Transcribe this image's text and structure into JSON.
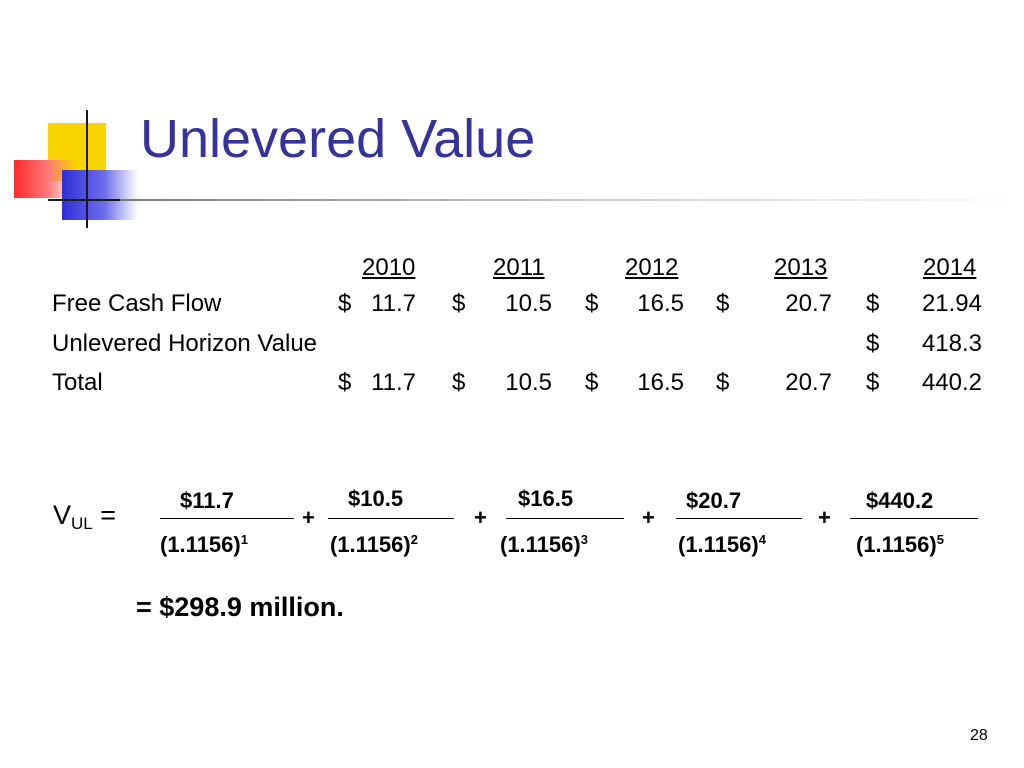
{
  "slide": {
    "title": "Unlevered Value",
    "page_number": "28"
  },
  "table": {
    "years": [
      "2010",
      "2011",
      "2012",
      "2013",
      "2014"
    ],
    "rows": [
      {
        "label": "Free Cash Flow",
        "cells": [
          {
            "cur": "$",
            "val": "11.7"
          },
          {
            "cur": "$",
            "val": "10.5"
          },
          {
            "cur": "$",
            "val": "16.5"
          },
          {
            "cur": "$",
            "val": "20.7"
          },
          {
            "cur": "$",
            "val": "21.94"
          }
        ]
      },
      {
        "label": "Unlevered Horizon Value",
        "cells": [
          {
            "cur": "",
            "val": ""
          },
          {
            "cur": "",
            "val": ""
          },
          {
            "cur": "",
            "val": ""
          },
          {
            "cur": "",
            "val": ""
          },
          {
            "cur": "$",
            "val": "418.3"
          }
        ]
      },
      {
        "label": "Total",
        "cells": [
          {
            "cur": "$",
            "val": "11.7"
          },
          {
            "cur": "$",
            "val": "10.5"
          },
          {
            "cur": "$",
            "val": "16.5"
          },
          {
            "cur": "$",
            "val": "20.7"
          },
          {
            "cur": "$",
            "val": "440.2"
          }
        ]
      }
    ]
  },
  "formula": {
    "v_letter": "V",
    "v_sub": "UL",
    "equals": "=",
    "plus": "+",
    "terms": [
      {
        "num": "$11.7",
        "den_base": "(1.1156)",
        "den_exp": "1"
      },
      {
        "num": "$10.5",
        "den_base": "(1.1156)",
        "den_exp": "2"
      },
      {
        "num": "$16.5",
        "den_base": "(1.1156)",
        "den_exp": "3"
      },
      {
        "num": "$20.7",
        "den_base": "(1.1156)",
        "den_exp": "4"
      },
      {
        "num": "$440.2",
        "den_base": "(1.1156)",
        "den_exp": "5"
      }
    ],
    "result": "= $298.9 million."
  }
}
